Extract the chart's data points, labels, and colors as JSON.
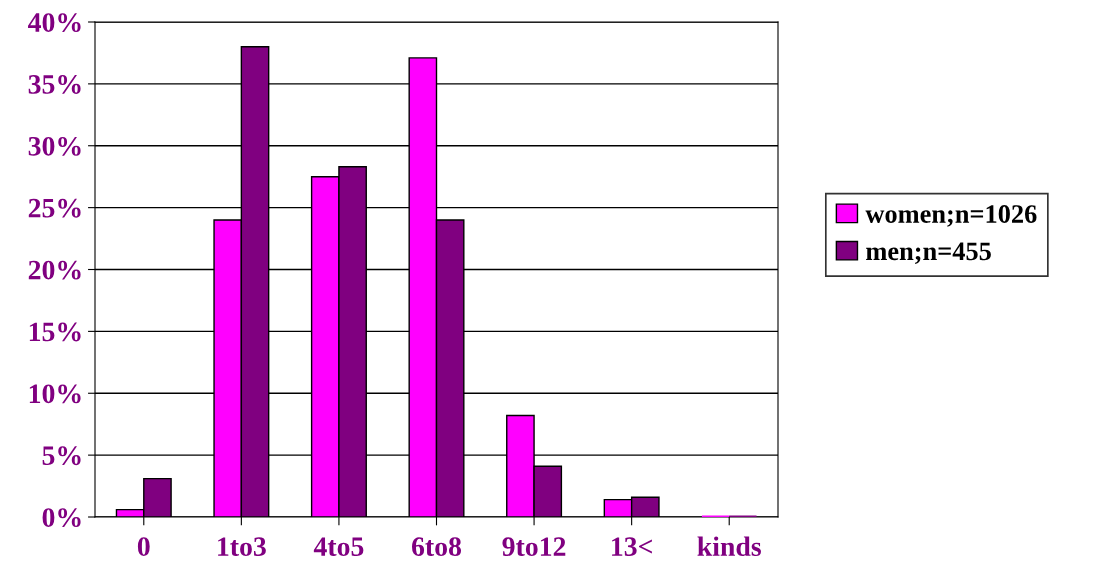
{
  "chart_data": {
    "type": "bar",
    "categories": [
      "0",
      "1to3",
      "4to5",
      "6to8",
      "9to12",
      "13<",
      "kinds"
    ],
    "series": [
      {
        "name": "women;n=1026",
        "color": "#ff00ff",
        "values": [
          0.6,
          24,
          27.5,
          37.1,
          8.2,
          1.4,
          0
        ]
      },
      {
        "name": "men;n=455",
        "color": "#800080",
        "values": [
          3.1,
          38,
          28.3,
          24,
          4.1,
          1.6,
          0
        ]
      }
    ],
    "ylim": [
      0,
      40
    ],
    "yticks": [
      {
        "value": 0,
        "label": "0%"
      },
      {
        "value": 5,
        "label": "5%"
      },
      {
        "value": 10,
        "label": "10%"
      },
      {
        "value": 15,
        "label": "15%"
      },
      {
        "value": 20,
        "label": "20%"
      },
      {
        "value": 25,
        "label": "25%"
      },
      {
        "value": 30,
        "label": "30%"
      },
      {
        "value": 35,
        "label": "35%"
      },
      {
        "value": 40,
        "label": "40%"
      }
    ],
    "grid": "y",
    "legend": "right"
  }
}
